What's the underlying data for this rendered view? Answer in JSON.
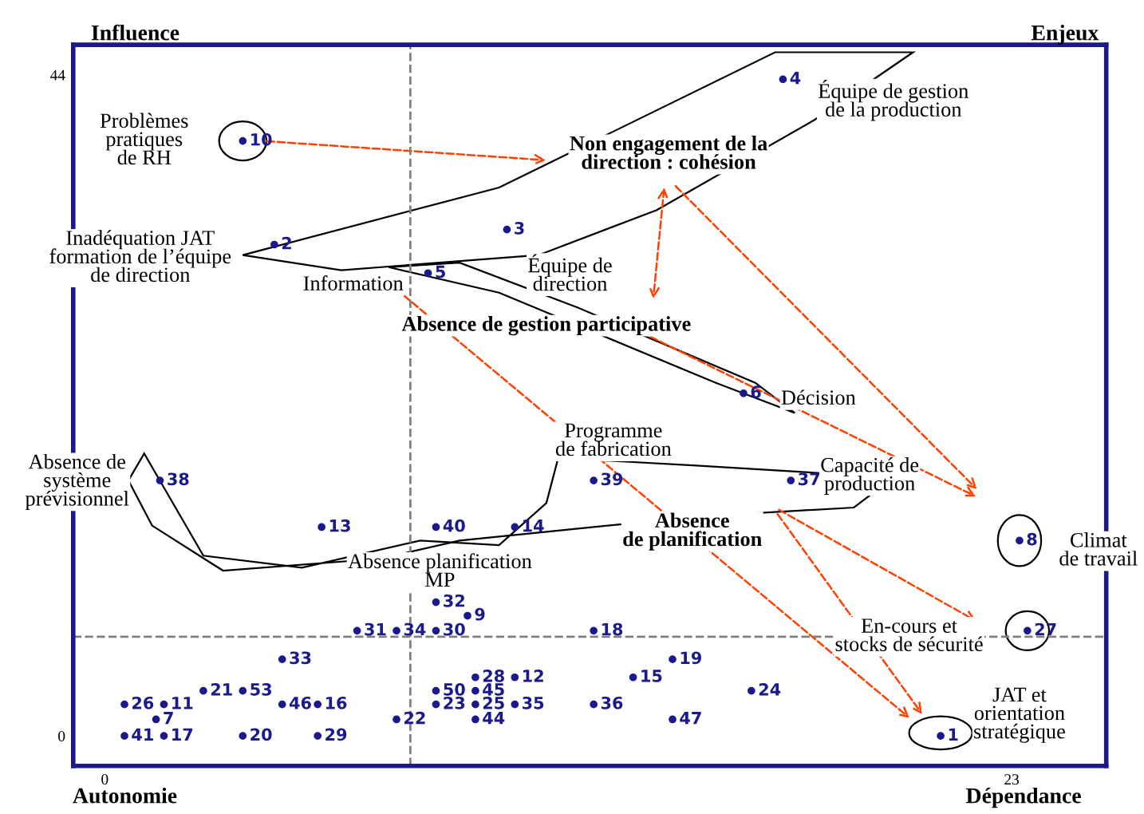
{
  "chart_data": {
    "type": "scatter",
    "xlim": [
      -0.8,
      25.4
    ],
    "ylim": [
      -2,
      46
    ],
    "xticks": [
      0,
      23
    ],
    "yticks": [
      0,
      44
    ],
    "grid": false,
    "legend": false,
    "marker": "circle",
    "x": [
      21.2,
      4.3,
      10.2,
      17.2,
      8.2,
      16.2,
      1.3,
      23.2,
      9.2,
      3.5,
      1.5,
      10.4,
      5.5,
      10.4,
      13.4,
      5.4,
      1.5,
      12.4,
      14.4,
      3.5,
      2.5,
      7.4,
      8.4,
      16.4,
      9.4,
      0.5,
      23.4,
      9.4,
      5.4,
      8.4,
      6.4,
      8.4,
      4.5,
      7.4,
      10.4,
      12.4,
      17.4,
      1.4,
      12.4,
      8.4,
      0.5,
      9.4,
      9.4,
      4.5,
      14.4,
      8.4,
      3.5
    ],
    "series": [
      {
        "color": "#1a1a8c",
        "values": [
          0,
          32.7,
          33.7,
          43.7,
          30.8,
          22.8,
          1.1,
          13.0,
          8.0,
          39.6,
          2.1,
          3.9,
          13.9,
          13.9,
          3.9,
          2.1,
          0,
          7.0,
          5.1,
          0,
          3.0,
          1.1,
          2.1,
          3.0,
          2.1,
          2.1,
          7.0,
          3.9,
          0,
          7.0,
          7.0,
          8.9,
          5.1,
          7.0,
          2.1,
          2.1,
          17.0,
          17.0,
          17.0,
          13.9,
          0,
          1.1,
          3.0,
          2.1,
          1.1,
          3.0,
          3.0
        ]
      }
    ],
    "ref_lines": [
      {
        "axis": "x",
        "value": 7.75,
        "color": "#808080",
        "line_style": "dashed"
      },
      {
        "axis": "y",
        "value": 6.6,
        "color": "#808080",
        "line_style": "dashed"
      }
    ],
    "annotations": [
      "Influence",
      "Enjeux",
      "Autonomie",
      "Dépendance",
      {
        "text": "1",
        "x": 21.2,
        "y": 0
      },
      {
        "text": "2",
        "x": 4.3,
        "y": 32.7
      },
      {
        "text": "3",
        "x": 10.2,
        "y": 33.7
      },
      {
        "text": "4",
        "x": 17.2,
        "y": 43.7
      },
      {
        "text": "5",
        "x": 8.2,
        "y": 30.8
      },
      {
        "text": "6",
        "x": 16.2,
        "y": 22.8
      },
      {
        "text": "7",
        "x": 1.3,
        "y": 1.1
      },
      {
        "text": "8",
        "x": 23.2,
        "y": 13.0
      },
      {
        "text": "9",
        "x": 9.2,
        "y": 8.0
      },
      {
        "text": "10",
        "x": 3.5,
        "y": 39.6
      },
      {
        "text": "11",
        "x": 1.5,
        "y": 2.1
      },
      {
        "text": "12",
        "x": 10.4,
        "y": 3.9
      },
      {
        "text": "13",
        "x": 5.5,
        "y": 13.9
      },
      {
        "text": "14",
        "x": 10.4,
        "y": 13.9
      },
      {
        "text": "15",
        "x": 13.4,
        "y": 3.9
      },
      {
        "text": "16",
        "x": 5.4,
        "y": 2.1
      },
      {
        "text": "17",
        "x": 1.5,
        "y": 0
      },
      {
        "text": "18",
        "x": 12.4,
        "y": 7.0
      },
      {
        "text": "19",
        "x": 14.4,
        "y": 5.1
      },
      {
        "text": "20",
        "x": 3.5,
        "y": 0
      },
      {
        "text": "21",
        "x": 2.5,
        "y": 3.0
      },
      {
        "text": "22",
        "x": 7.4,
        "y": 1.1
      },
      {
        "text": "23",
        "x": 8.4,
        "y": 2.1
      },
      {
        "text": "24",
        "x": 16.4,
        "y": 3.0
      },
      {
        "text": "25",
        "x": 9.4,
        "y": 2.1
      },
      {
        "text": "26",
        "x": 0.5,
        "y": 2.1
      },
      {
        "text": "27",
        "x": 23.4,
        "y": 7.0
      },
      {
        "text": "28",
        "x": 9.4,
        "y": 3.9
      },
      {
        "text": "29",
        "x": 5.4,
        "y": 0
      },
      {
        "text": "30",
        "x": 8.4,
        "y": 7.0
      },
      {
        "text": "31",
        "x": 6.4,
        "y": 7.0
      },
      {
        "text": "32",
        "x": 8.4,
        "y": 8.9
      },
      {
        "text": "33",
        "x": 4.5,
        "y": 5.1
      },
      {
        "text": "34",
        "x": 7.4,
        "y": 7.0
      },
      {
        "text": "35",
        "x": 10.4,
        "y": 2.1
      },
      {
        "text": "36",
        "x": 12.4,
        "y": 2.1
      },
      {
        "text": "37",
        "x": 17.4,
        "y": 17.0
      },
      {
        "text": "38",
        "x": 1.4,
        "y": 17.0
      },
      {
        "text": "39",
        "x": 12.4,
        "y": 17.0
      },
      {
        "text": "40",
        "x": 8.4,
        "y": 13.9
      },
      {
        "text": "41",
        "x": 0.5,
        "y": 0
      },
      {
        "text": "44",
        "x": 9.4,
        "y": 1.1
      },
      {
        "text": "45",
        "x": 9.4,
        "y": 3.0
      },
      {
        "text": "46",
        "x": 4.5,
        "y": 2.1
      },
      {
        "text": "47",
        "x": 14.4,
        "y": 1.1
      },
      {
        "text": "50",
        "x": 8.4,
        "y": 3.0
      },
      {
        "text": "53",
        "x": 3.5,
        "y": 3.0
      },
      "Problèmes\npratiques\nde RH",
      "Inadéquation JAT\nformation de l’équipe\nde direction",
      "Information",
      "Équipe de gestion\nde la production",
      "Non engagement de la\ndirection : cohésion",
      "Équipe de\ndirection",
      "Absence de gestion participative",
      "Décision",
      "Absence de\nsystème\nprévisionnel",
      "Programme\nde fabrication",
      "Capacité de\nproduction",
      "Absence\nde planification",
      "Absence planification\nMP",
      "Climat\nde travail",
      "En-cours et\nstocks de sécurité",
      "JAT et\norientation\nstratégique"
    ]
  }
}
